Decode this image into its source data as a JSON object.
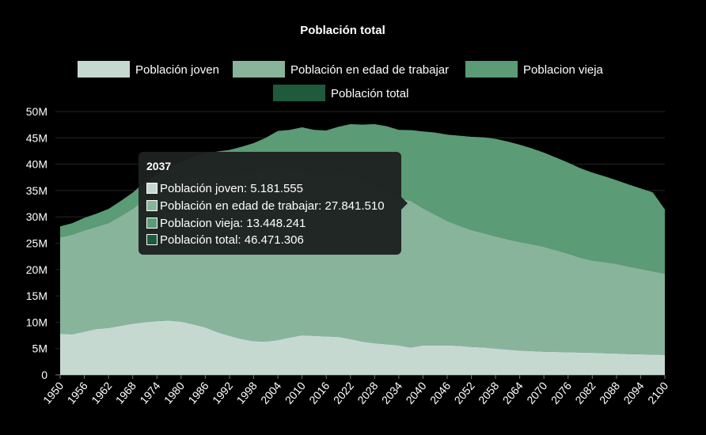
{
  "chart_data": {
    "type": "area",
    "title": "Población total",
    "x": [
      1950,
      1953,
      1956,
      1959,
      1962,
      1965,
      1968,
      1971,
      1974,
      1977,
      1980,
      1983,
      1986,
      1989,
      1992,
      1995,
      1998,
      2001,
      2004,
      2007,
      2010,
      2013,
      2016,
      2019,
      2022,
      2025,
      2028,
      2031,
      2034,
      2037,
      2040,
      2043,
      2046,
      2049,
      2052,
      2055,
      2058,
      2061,
      2064,
      2067,
      2070,
      2073,
      2076,
      2079,
      2082,
      2085,
      2088,
      2091,
      2094,
      2097,
      2100
    ],
    "x_tick_labels": [
      "1950",
      "1956",
      "1962",
      "1968",
      "1974",
      "1980",
      "1986",
      "1992",
      "1998",
      "2004",
      "2010",
      "2016",
      "2022",
      "2028",
      "2034",
      "2040",
      "2046",
      "2052",
      "2058",
      "2064",
      "2070",
      "2076",
      "2082",
      "2088",
      "2094",
      "2100"
    ],
    "y_tick_labels": [
      "0",
      "5M",
      "10M",
      "15M",
      "20M",
      "25M",
      "30M",
      "35M",
      "40M",
      "45M",
      "50M"
    ],
    "ylim": [
      0,
      50000000
    ],
    "series": [
      {
        "name": "Población joven",
        "color": "#c6d9d1",
        "values": [
          7.8,
          7.7,
          8.2,
          8.7,
          8.9,
          9.3,
          9.7,
          10.0,
          10.2,
          10.3,
          10.1,
          9.6,
          9.0,
          8.1,
          7.4,
          6.8,
          6.4,
          6.3,
          6.6,
          7.1,
          7.5,
          7.4,
          7.3,
          7.2,
          6.8,
          6.3,
          6.0,
          5.8,
          5.6,
          5.18,
          5.6,
          5.6,
          5.6,
          5.5,
          5.3,
          5.2,
          5.0,
          4.8,
          4.6,
          4.5,
          4.4,
          4.35,
          4.3,
          4.25,
          4.2,
          4.1,
          4.05,
          3.95,
          3.9,
          3.85,
          3.8
        ]
      },
      {
        "name": "Población en edad de trabajar",
        "color": "#88b49c",
        "values": [
          18.3,
          18.9,
          19.2,
          19.4,
          19.9,
          20.8,
          21.8,
          23.3,
          24.3,
          25.4,
          26.8,
          28.0,
          29.0,
          29.9,
          30.5,
          31.4,
          32.1,
          32.8,
          32.9,
          31.8,
          31.5,
          30.7,
          30.5,
          31.0,
          31.2,
          30.6,
          30.0,
          29.0,
          27.9,
          27.84,
          26.0,
          24.8,
          23.6,
          22.8,
          22.2,
          21.7,
          21.3,
          20.9,
          20.6,
          20.3,
          19.9,
          19.3,
          18.7,
          18.0,
          17.5,
          17.3,
          17.0,
          16.6,
          16.2,
          15.8,
          15.4
        ]
      },
      {
        "name": "Poblacion vieja",
        "color": "#5b9b76",
        "values": [
          2.1,
          2.2,
          2.4,
          2.5,
          2.7,
          2.9,
          3.1,
          3.3,
          3.5,
          3.6,
          3.6,
          3.8,
          4.1,
          4.4,
          4.8,
          5.1,
          5.5,
          5.9,
          6.8,
          7.6,
          8.0,
          8.4,
          8.6,
          8.9,
          9.6,
          10.6,
          11.6,
          12.4,
          13.0,
          13.45,
          14.6,
          15.6,
          16.4,
          17.1,
          17.7,
          18.2,
          18.5,
          18.6,
          18.5,
          18.2,
          17.9,
          17.6,
          17.3,
          17.0,
          16.7,
          16.3,
          15.9,
          15.6,
          15.3,
          15.0,
          12.2
        ]
      },
      {
        "name": "Población total",
        "color": "#1e5a3c",
        "values": [
          28.2,
          28.8,
          29.8,
          30.6,
          31.5,
          33.0,
          34.6,
          36.6,
          38.0,
          39.3,
          40.5,
          41.4,
          42.1,
          42.4,
          42.7,
          43.3,
          44.0,
          45.0,
          46.3,
          46.5,
          47.0,
          46.5,
          46.4,
          47.1,
          47.6,
          47.5,
          47.6,
          47.2,
          46.5,
          46.47,
          46.2,
          46.0,
          45.6,
          45.4,
          45.2,
          45.1,
          44.8,
          44.3,
          43.7,
          43.0,
          42.2,
          41.25,
          40.3,
          39.25,
          38.4,
          37.7,
          36.95,
          36.15,
          35.4,
          34.65,
          31.4
        ]
      }
    ],
    "grid": true,
    "legend_position": "top"
  },
  "tooltip": {
    "title": "2037",
    "rows": [
      {
        "label": "Población joven: 5.181.555",
        "color": "#c6d9d1"
      },
      {
        "label": "Población en edad de trabajar: 27.841.510",
        "color": "#88b49c"
      },
      {
        "label": "Poblacion vieja: 13.448.241",
        "color": "#5b9b76"
      },
      {
        "label": "Población total: 46.471.306",
        "color": "#1e5a3c"
      }
    ]
  }
}
